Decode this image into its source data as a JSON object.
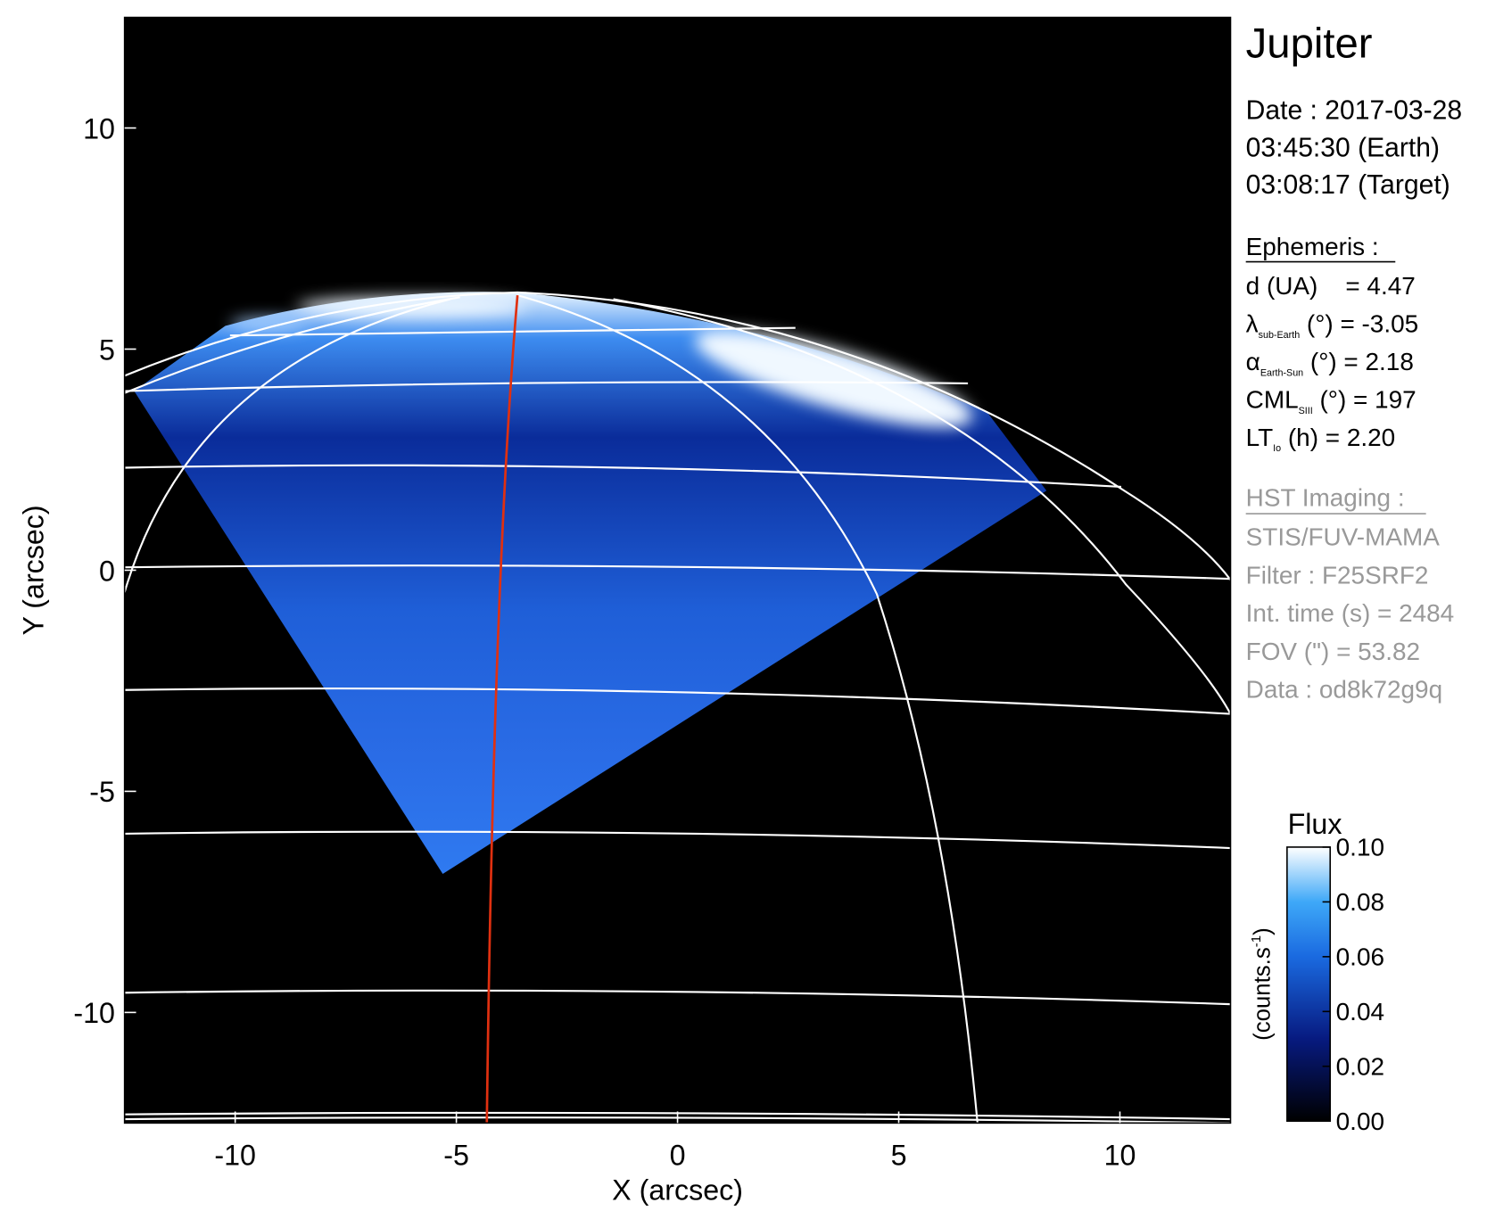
{
  "chart_data": {
    "type": "image",
    "xlabel": "X (arcsec)",
    "ylabel": "Y (arcsec)",
    "xlim": [
      -12.5,
      12.5
    ],
    "ylim": [
      -12.5,
      12.5
    ],
    "xticks": [
      -10,
      -5,
      0,
      5,
      10
    ],
    "yticks": [
      -10,
      -5,
      0,
      5,
      10
    ],
    "colorbar": {
      "title": "Flux",
      "unit": [
        "(counts.s",
        "-1",
        ")"
      ],
      "lim": [
        0,
        0.1
      ],
      "ticks": [
        {
          "value": 0,
          "label": "0.00"
        },
        {
          "value": 0.02,
          "label": "0.02"
        },
        {
          "value": 0.04,
          "label": "0.04"
        },
        {
          "value": 0.06,
          "label": "0.06"
        },
        {
          "value": 0.08,
          "label": "0.08"
        },
        {
          "value": 0.1,
          "label": "0.10"
        }
      ]
    }
  },
  "info": {
    "title": "Jupiter",
    "date": [
      "Date : 2017-03-28",
      "03:45:30 (Earth)",
      "03:08:17 (Target)"
    ],
    "ephemeris": {
      "heading": "Ephemeris :",
      "lines": [
        {
          "text": "d (UA)    = 4.47"
        },
        {
          "symbol": "λ",
          "sub": "sub-Earth",
          "text": " (°) = -3.05"
        },
        {
          "symbol": "α",
          "sub": "Earth-Sun",
          "text": " (°) = 2.18"
        },
        {
          "symbol": "CML",
          "sub": "SIII",
          "text": " (°) = 197"
        },
        {
          "symbol": "LT",
          "sub": "Io",
          "text": " (h) = 2.20"
        }
      ]
    },
    "hst": {
      "heading": "HST Imaging :",
      "lines": [
        "STIS/FUV-MAMA",
        "Filter : F25SRF2",
        "Int. time (s) = 2484",
        "FOV (\") = 53.82",
        "Data : od8k72g9q"
      ]
    }
  }
}
